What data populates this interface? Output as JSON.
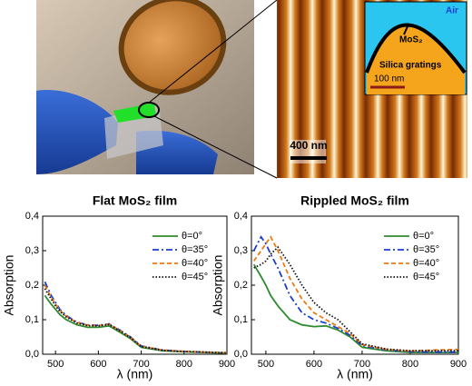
{
  "figure": {
    "scale_bar": "400 nm",
    "inset": {
      "air": "Air",
      "label": "MoS₂",
      "substrate": "Silica gratings",
      "scale_bar": "100 nm"
    }
  },
  "chart_data": [
    {
      "type": "line",
      "title": "Flat MoS₂ film",
      "x_label": "λ (nm)",
      "y_label": "Absorption",
      "x": [
        475,
        490,
        500,
        510,
        525,
        550,
        575,
        600,
        625,
        650,
        675,
        700,
        750,
        800,
        850,
        900
      ],
      "xlim": [
        470,
        900
      ],
      "xticks": [
        500,
        600,
        700,
        800,
        900
      ],
      "ylim": [
        0,
        0.4
      ],
      "yticks": [
        {
          "value": 0,
          "label": "0,0"
        },
        {
          "value": 0.1,
          "label": "0,1"
        },
        {
          "value": 0.2,
          "label": "0,2"
        },
        {
          "value": 0.3,
          "label": "0,3"
        },
        {
          "value": 0.4,
          "label": "0,4"
        }
      ],
      "series": [
        {
          "name": "θ=0°",
          "color": "#2e8b2e",
          "dash": "solid",
          "values": [
            0.17,
            0.145,
            0.13,
            0.115,
            0.1,
            0.085,
            0.078,
            0.078,
            0.082,
            0.064,
            0.045,
            0.02,
            0.01,
            0.007,
            0.005,
            0.003
          ]
        },
        {
          "name": "θ=35°",
          "color": "#1a3fd0",
          "dash": "dashdot",
          "values": [
            0.21,
            0.17,
            0.15,
            0.13,
            0.112,
            0.093,
            0.085,
            0.084,
            0.088,
            0.07,
            0.05,
            0.024,
            0.012,
            0.008,
            0.006,
            0.004
          ]
        },
        {
          "name": "θ=40°",
          "color": "#f07810",
          "dash": "dash",
          "values": [
            0.2,
            0.165,
            0.145,
            0.127,
            0.11,
            0.092,
            0.084,
            0.083,
            0.087,
            0.069,
            0.049,
            0.023,
            0.012,
            0.008,
            0.006,
            0.004
          ]
        },
        {
          "name": "θ=45°",
          "color": "#111111",
          "dash": "dot",
          "values": [
            0.19,
            0.16,
            0.14,
            0.124,
            0.108,
            0.09,
            0.083,
            0.082,
            0.086,
            0.068,
            0.048,
            0.022,
            0.011,
            0.008,
            0.006,
            0.004
          ]
        }
      ]
    },
    {
      "type": "line",
      "title": "Rippled MoS₂ film",
      "x_label": "λ (nm)",
      "y_label": "Absorption",
      "x": [
        475,
        490,
        500,
        510,
        525,
        550,
        575,
        600,
        625,
        650,
        675,
        700,
        750,
        800,
        850,
        900
      ],
      "xlim": [
        470,
        900
      ],
      "xticks": [
        500,
        600,
        700,
        800,
        900
      ],
      "ylim": [
        0,
        0.4
      ],
      "yticks": [
        {
          "value": 0,
          "label": "0,0"
        },
        {
          "value": 0.1,
          "label": "0,1"
        },
        {
          "value": 0.2,
          "label": "0,2"
        },
        {
          "value": 0.3,
          "label": "0,3"
        },
        {
          "value": 0.4,
          "label": "0,4"
        }
      ],
      "series": [
        {
          "name": "θ=0°",
          "color": "#2e8b2e",
          "dash": "solid",
          "values": [
            0.26,
            0.225,
            0.2,
            0.17,
            0.14,
            0.1,
            0.085,
            0.08,
            0.082,
            0.07,
            0.05,
            0.02,
            0.01,
            0.005,
            0.005,
            0.005
          ]
        },
        {
          "name": "θ=35°",
          "color": "#1a3fd0",
          "dash": "dashdot",
          "values": [
            0.3,
            0.34,
            0.32,
            0.29,
            0.25,
            0.17,
            0.12,
            0.1,
            0.09,
            0.075,
            0.055,
            0.025,
            0.012,
            0.007,
            0.006,
            0.006
          ]
        },
        {
          "name": "θ=40°",
          "color": "#f07810",
          "dash": "dash",
          "values": [
            0.27,
            0.3,
            0.32,
            0.34,
            0.3,
            0.22,
            0.16,
            0.12,
            0.1,
            0.08,
            0.06,
            0.028,
            0.014,
            0.009,
            0.012,
            0.014
          ]
        },
        {
          "name": "θ=45°",
          "color": "#111111",
          "dash": "dot",
          "values": [
            0.25,
            0.26,
            0.27,
            0.29,
            0.31,
            0.26,
            0.2,
            0.15,
            0.12,
            0.1,
            0.065,
            0.03,
            0.015,
            0.01,
            0.01,
            0.01
          ]
        }
      ]
    }
  ]
}
